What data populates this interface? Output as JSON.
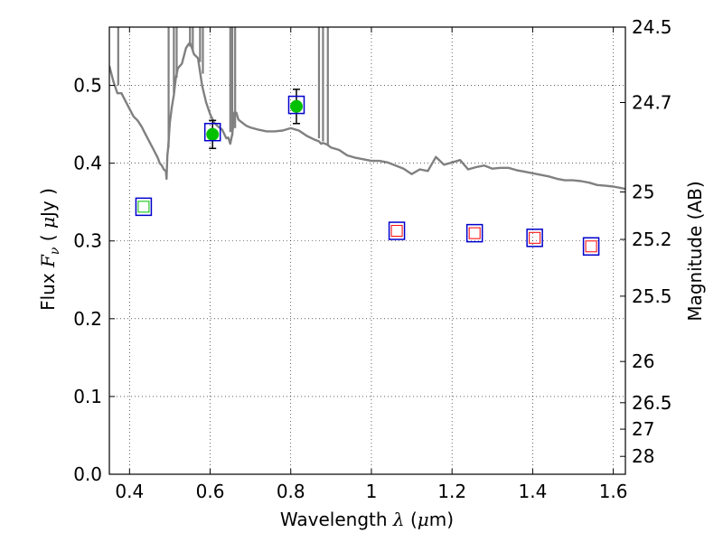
{
  "chart_data": {
    "type": "scatter",
    "title": "",
    "xlabel": {
      "prefix": "Wavelength",
      "symbol": "λ",
      "unit_open": "(",
      "unit_mu": "μ",
      "unit_rest": "m)"
    },
    "ylabel": {
      "prefix": "Flux",
      "symbol": "F",
      "subscript": "ν",
      "unit_open": "(",
      "unit_mu": "μ",
      "unit_rest": "Jy )"
    },
    "y2label": "Magnitude (AB)",
    "xlim": [
      0.35,
      1.63
    ],
    "ylim": [
      0.0,
      0.575
    ],
    "grid": true,
    "x_ticks": [
      {
        "value": 0.4,
        "label": "0.4"
      },
      {
        "value": 0.6,
        "label": "0.6"
      },
      {
        "value": 0.8,
        "label": "0.8"
      },
      {
        "value": 1.0,
        "label": "1"
      },
      {
        "value": 1.2,
        "label": "1.2"
      },
      {
        "value": 1.4,
        "label": "1.4"
      },
      {
        "value": 1.6,
        "label": "1.6"
      }
    ],
    "y_ticks": [
      {
        "value": 0.0,
        "label": "0.0"
      },
      {
        "value": 0.1,
        "label": "0.1"
      },
      {
        "value": 0.2,
        "label": "0.2"
      },
      {
        "value": 0.3,
        "label": "0.3"
      },
      {
        "value": 0.4,
        "label": "0.4"
      },
      {
        "value": 0.5,
        "label": "0.5"
      }
    ],
    "y2_ticks": [
      {
        "flux": 0.575,
        "label": "24.5"
      },
      {
        "flux": 0.478,
        "label": "24.7"
      },
      {
        "flux": 0.363,
        "label": "25"
      },
      {
        "flux": 0.302,
        "label": "25.2"
      },
      {
        "flux": 0.229,
        "label": "25.5"
      },
      {
        "flux": 0.145,
        "label": "26"
      },
      {
        "flux": 0.092,
        "label": "26.5"
      },
      {
        "flux": 0.058,
        "label": "27"
      },
      {
        "flux": 0.023,
        "label": "28"
      }
    ],
    "series": [
      {
        "name": "model spectrum",
        "kind": "line",
        "color": "#808080",
        "x": [
          0.35,
          0.36,
          0.37,
          0.38,
          0.39,
          0.4,
          0.41,
          0.42,
          0.43,
          0.44,
          0.45,
          0.46,
          0.47,
          0.475,
          0.48,
          0.485,
          0.49,
          0.492,
          0.494,
          0.496,
          0.5,
          0.505,
          0.51,
          0.515,
          0.52,
          0.53,
          0.54,
          0.545,
          0.55,
          0.555,
          0.56,
          0.57,
          0.58,
          0.59,
          0.6,
          0.61,
          0.62,
          0.63,
          0.64,
          0.645,
          0.65,
          0.655,
          0.66,
          0.665,
          0.67,
          0.68,
          0.69,
          0.7,
          0.72,
          0.74,
          0.76,
          0.78,
          0.8,
          0.82,
          0.84,
          0.86,
          0.87,
          0.875,
          0.88,
          0.89,
          0.9,
          0.92,
          0.94,
          0.96,
          0.98,
          1.0,
          1.02,
          1.04,
          1.06,
          1.08,
          1.1,
          1.12,
          1.14,
          1.16,
          1.18,
          1.2,
          1.22,
          1.24,
          1.26,
          1.28,
          1.3,
          1.32,
          1.34,
          1.36,
          1.38,
          1.4,
          1.42,
          1.44,
          1.46,
          1.48,
          1.5,
          1.52,
          1.54,
          1.56,
          1.58,
          1.6,
          1.62,
          1.63
        ],
        "y": [
          0.525,
          0.505,
          0.49,
          0.49,
          0.48,
          0.47,
          0.46,
          0.455,
          0.447,
          0.437,
          0.427,
          0.417,
          0.407,
          0.4,
          0.397,
          0.392,
          0.39,
          0.38,
          0.41,
          0.42,
          0.452,
          0.472,
          0.488,
          0.51,
          0.522,
          0.528,
          0.548,
          0.552,
          0.555,
          0.548,
          0.54,
          0.535,
          0.5,
          0.478,
          0.463,
          0.452,
          0.447,
          0.443,
          0.432,
          0.433,
          0.425,
          0.438,
          0.465,
          0.465,
          0.456,
          0.452,
          0.448,
          0.446,
          0.443,
          0.441,
          0.441,
          0.442,
          0.445,
          0.442,
          0.435,
          0.43,
          0.428,
          0.425,
          0.426,
          0.424,
          0.42,
          0.417,
          0.41,
          0.407,
          0.405,
          0.403,
          0.403,
          0.401,
          0.397,
          0.393,
          0.386,
          0.392,
          0.39,
          0.408,
          0.398,
          0.401,
          0.404,
          0.392,
          0.395,
          0.397,
          0.393,
          0.394,
          0.394,
          0.391,
          0.389,
          0.387,
          0.385,
          0.383,
          0.38,
          0.378,
          0.378,
          0.377,
          0.375,
          0.372,
          0.371,
          0.37,
          0.368,
          0.367
        ]
      },
      {
        "name": "model spikes",
        "kind": "spikes",
        "color": "#808080",
        "x": [
          0.372,
          0.497,
          0.51,
          0.517,
          0.55,
          0.557,
          0.575,
          0.582,
          0.65,
          0.655,
          0.662,
          0.87,
          0.88,
          0.892
        ],
        "y_from": [
          0.5,
          0.42,
          0.49,
          0.51,
          0.55,
          0.545,
          0.53,
          0.515,
          0.44,
          0.435,
          0.445,
          0.432,
          0.428,
          0.424
        ],
        "y_to": [
          0.575,
          0.575,
          0.575,
          0.575,
          0.575,
          0.575,
          0.575,
          0.575,
          0.575,
          0.575,
          0.575,
          0.575,
          0.575,
          0.575
        ]
      },
      {
        "name": "observed",
        "kind": "circle",
        "color": "#00c000",
        "x": [
          0.606,
          0.814
        ],
        "y": [
          0.437,
          0.473
        ],
        "yerr": [
          0.018,
          0.022
        ]
      },
      {
        "name": "blue squares",
        "kind": "square",
        "color": "#0000cc",
        "x": [
          0.435,
          0.606,
          0.814,
          1.063,
          1.256,
          1.405,
          1.545
        ],
        "y": [
          0.344,
          0.44,
          0.475,
          0.313,
          0.31,
          0.304,
          0.293
        ]
      },
      {
        "name": "green open squares",
        "kind": "open-square",
        "color": "#00c000",
        "x": [
          0.435
        ],
        "y": [
          0.344
        ]
      },
      {
        "name": "red open squares",
        "kind": "open-square",
        "color": "#ff0000",
        "x": [
          1.063,
          1.256,
          1.405,
          1.545
        ],
        "y": [
          0.313,
          0.31,
          0.304,
          0.293
        ]
      }
    ]
  }
}
